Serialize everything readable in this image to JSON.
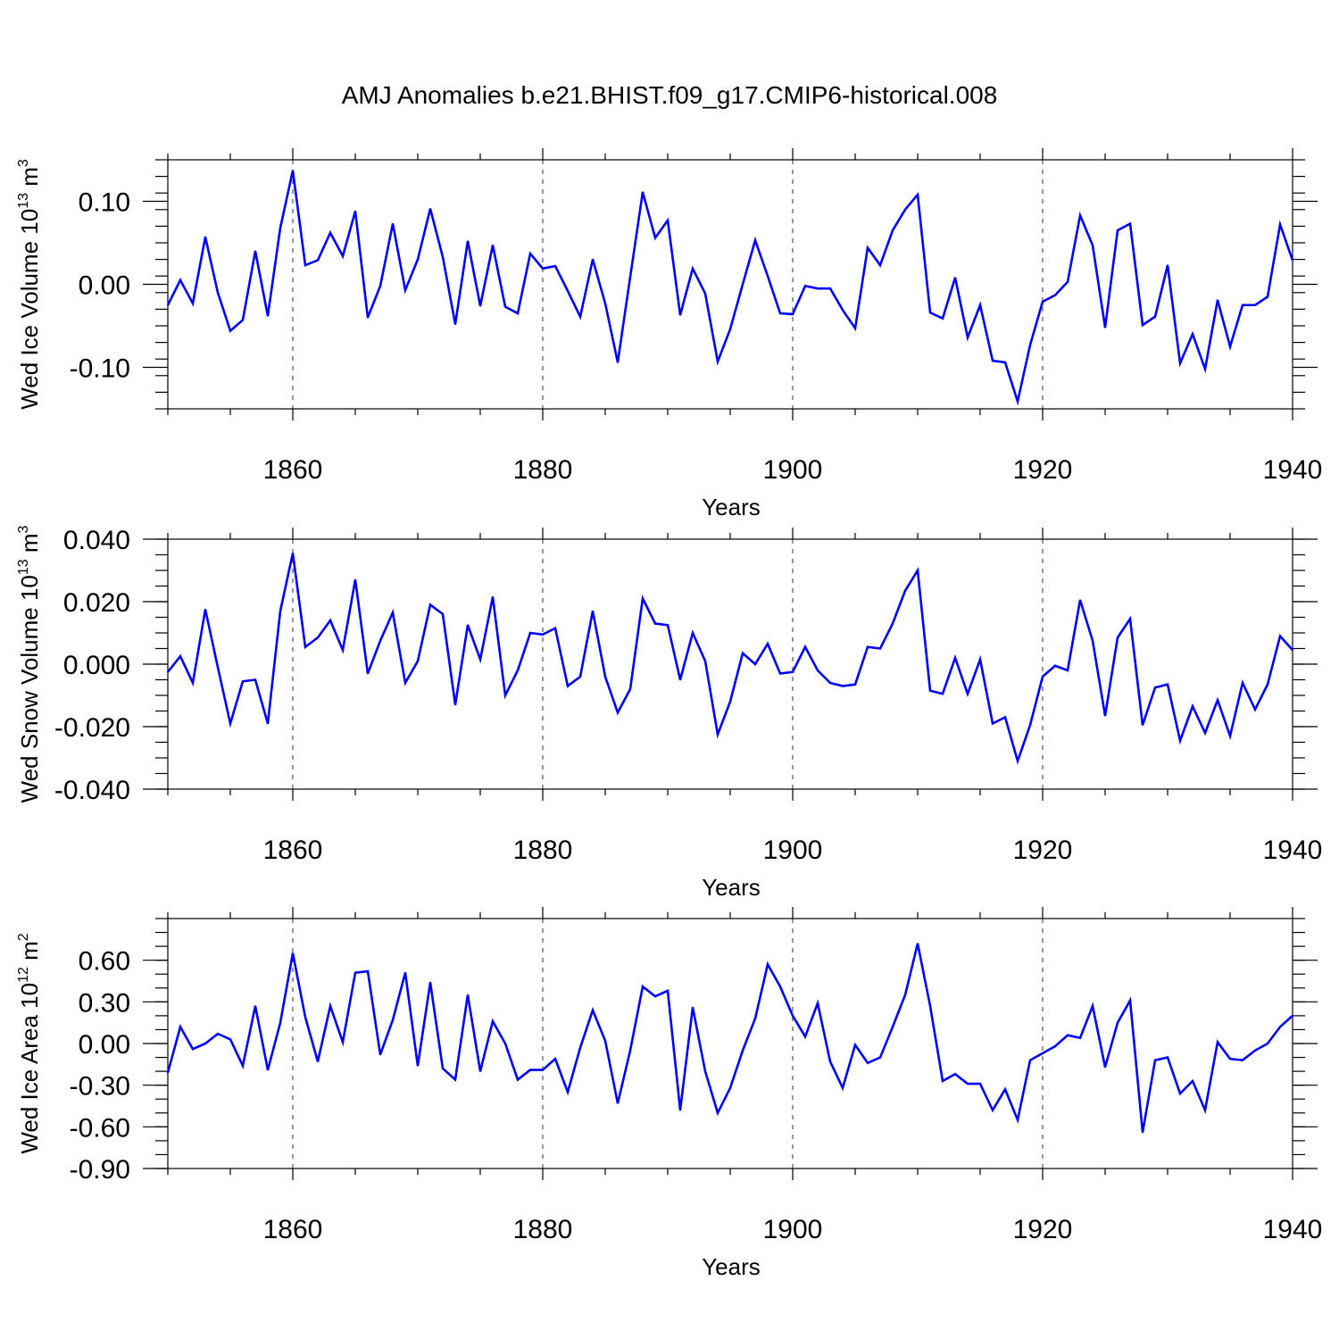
{
  "title": "AMJ Anomalies b.e21.BHIST.f09_g17.CMIP6-historical.008",
  "colors": {
    "series": "#0000ff",
    "axis": "#000000"
  },
  "chart_data": [
    {
      "type": "line",
      "ylabel_main": "Wed Ice Volume 10",
      "ylabel_exp": "13",
      "ylabel_unit": " m",
      "ylabel_unit_exp": "3",
      "xlabel": "Years",
      "xlim": [
        1850,
        1940
      ],
      "ylim": [
        -0.15,
        0.15
      ],
      "x_ticks": [
        1860,
        1880,
        1900,
        1920,
        1940
      ],
      "x_tick_labels": [
        "1860",
        "1880",
        "1900",
        "1920",
        "1940"
      ],
      "y_ticks": [
        -0.1,
        0.0,
        0.1
      ],
      "y_tick_labels": [
        "-0.10",
        "0.00",
        "0.10"
      ],
      "y_minor_step": 0.02,
      "grid_x": [
        1860,
        1880,
        1900,
        1920
      ],
      "series": [
        {
          "name": "Wed Ice Volume",
          "x_start": 1850,
          "values": [
            -0.025,
            0.005,
            -0.023,
            0.057,
            -0.01,
            -0.056,
            -0.043,
            0.04,
            -0.038,
            0.068,
            0.137,
            0.023,
            0.029,
            0.062,
            0.034,
            0.088,
            -0.04,
            -0.002,
            0.073,
            -0.007,
            0.03,
            0.091,
            0.033,
            -0.048,
            0.052,
            -0.026,
            0.047,
            -0.027,
            -0.035,
            0.037,
            0.019,
            0.022,
            -0.008,
            -0.039,
            0.03,
            -0.023,
            -0.094,
            0.009,
            0.111,
            0.056,
            0.077,
            -0.037,
            0.019,
            -0.011,
            -0.093,
            -0.054,
            0.0,
            0.053,
            0.01,
            -0.035,
            -0.036,
            -0.002,
            -0.005,
            -0.005,
            -0.031,
            -0.053,
            0.044,
            0.023,
            0.065,
            0.09,
            0.108,
            -0.034,
            -0.041,
            0.008,
            -0.064,
            -0.025,
            -0.092,
            -0.094,
            -0.141,
            -0.073,
            -0.021,
            -0.013,
            0.003,
            0.083,
            0.047,
            -0.052,
            0.065,
            0.073,
            -0.049,
            -0.039,
            0.023,
            -0.095,
            -0.06,
            -0.102,
            -0.019,
            -0.075,
            -0.025,
            -0.025,
            -0.015,
            0.072,
            0.029
          ]
        }
      ]
    },
    {
      "type": "line",
      "ylabel_main": "Wed Snow Volume 10",
      "ylabel_exp": "13",
      "ylabel_unit": " m",
      "ylabel_unit_exp": "3",
      "xlabel": "Years",
      "xlim": [
        1850,
        1940
      ],
      "ylim": [
        -0.04,
        0.04
      ],
      "x_ticks": [
        1860,
        1880,
        1900,
        1920,
        1940
      ],
      "x_tick_labels": [
        "1860",
        "1880",
        "1900",
        "1920",
        "1940"
      ],
      "y_ticks": [
        -0.04,
        -0.02,
        0.0,
        0.02,
        0.04
      ],
      "y_tick_labels": [
        "-0.040",
        "-0.020",
        "0.000",
        "0.020",
        "0.040"
      ],
      "y_minor_step": 0.005,
      "grid_x": [
        1860,
        1880,
        1900,
        1920
      ],
      "series": [
        {
          "name": "Wed Snow Volume",
          "x_start": 1850,
          "values": [
            -0.0025,
            0.0025,
            -0.006,
            0.0175,
            -0.001,
            -0.019,
            -0.0055,
            -0.005,
            -0.019,
            0.017,
            0.0355,
            0.0055,
            0.0085,
            0.014,
            0.0045,
            0.027,
            -0.003,
            0.0075,
            0.0165,
            -0.006,
            0.001,
            0.019,
            0.016,
            -0.013,
            0.0125,
            0.0015,
            0.0215,
            -0.01,
            -0.002,
            0.01,
            0.0095,
            0.0115,
            -0.007,
            -0.004,
            0.017,
            -0.004,
            -0.0155,
            -0.008,
            0.021,
            0.013,
            0.0125,
            -0.005,
            0.01,
            0.001,
            -0.0225,
            -0.012,
            0.0035,
            0.0,
            0.0065,
            -0.003,
            -0.0025,
            0.0055,
            -0.002,
            -0.006,
            -0.007,
            -0.0065,
            0.0055,
            0.005,
            0.013,
            0.0235,
            0.03,
            -0.0085,
            -0.0095,
            0.002,
            -0.0095,
            0.0015,
            -0.019,
            -0.017,
            -0.031,
            -0.0195,
            -0.004,
            -0.0005,
            -0.002,
            0.0205,
            0.0075,
            -0.0165,
            0.0085,
            0.0145,
            -0.0195,
            -0.0075,
            -0.0065,
            -0.0245,
            -0.0135,
            -0.022,
            -0.0115,
            -0.023,
            -0.006,
            -0.0145,
            -0.0065,
            0.009,
            0.0045
          ]
        }
      ]
    },
    {
      "type": "line",
      "ylabel_main": "Wed Ice Area 10",
      "ylabel_exp": "12",
      "ylabel_unit": " m",
      "ylabel_unit_exp": "2",
      "xlabel": "Years",
      "xlim": [
        1850,
        1940
      ],
      "ylim": [
        -0.9,
        0.9
      ],
      "x_ticks": [
        1860,
        1880,
        1900,
        1920,
        1940
      ],
      "x_tick_labels": [
        "1860",
        "1880",
        "1900",
        "1920",
        "1940"
      ],
      "y_ticks": [
        -0.9,
        -0.6,
        -0.3,
        0.0,
        0.3,
        0.6
      ],
      "y_tick_labels": [
        "-0.90",
        "-0.60",
        "-0.30",
        "0.00",
        "0.30",
        "0.60"
      ],
      "y_minor_step": 0.1,
      "grid_x": [
        1860,
        1880,
        1900,
        1920
      ],
      "series": [
        {
          "name": "Wed Ice Area",
          "x_start": 1850,
          "values": [
            -0.21,
            0.12,
            -0.04,
            0.0,
            0.07,
            0.03,
            -0.16,
            0.27,
            -0.19,
            0.15,
            0.65,
            0.19,
            -0.13,
            0.27,
            0.01,
            0.51,
            0.52,
            -0.08,
            0.17,
            0.51,
            -0.16,
            0.44,
            -0.18,
            -0.26,
            0.35,
            -0.2,
            0.16,
            0.0,
            -0.26,
            -0.19,
            -0.19,
            -0.11,
            -0.35,
            -0.03,
            0.24,
            0.02,
            -0.43,
            -0.05,
            0.41,
            0.34,
            0.38,
            -0.48,
            0.26,
            -0.2,
            -0.5,
            -0.32,
            -0.05,
            0.18,
            0.57,
            0.41,
            0.2,
            0.05,
            0.29,
            -0.13,
            -0.32,
            -0.01,
            -0.14,
            -0.1,
            0.12,
            0.35,
            0.72,
            0.27,
            -0.27,
            -0.22,
            -0.29,
            -0.29,
            -0.48,
            -0.33,
            -0.55,
            -0.12,
            -0.07,
            -0.02,
            0.06,
            0.04,
            0.27,
            -0.17,
            0.15,
            0.31,
            -0.64,
            -0.12,
            -0.1,
            -0.36,
            -0.27,
            -0.48,
            0.01,
            -0.11,
            -0.12,
            -0.05,
            0.0,
            0.12,
            0.2
          ]
        }
      ]
    }
  ]
}
